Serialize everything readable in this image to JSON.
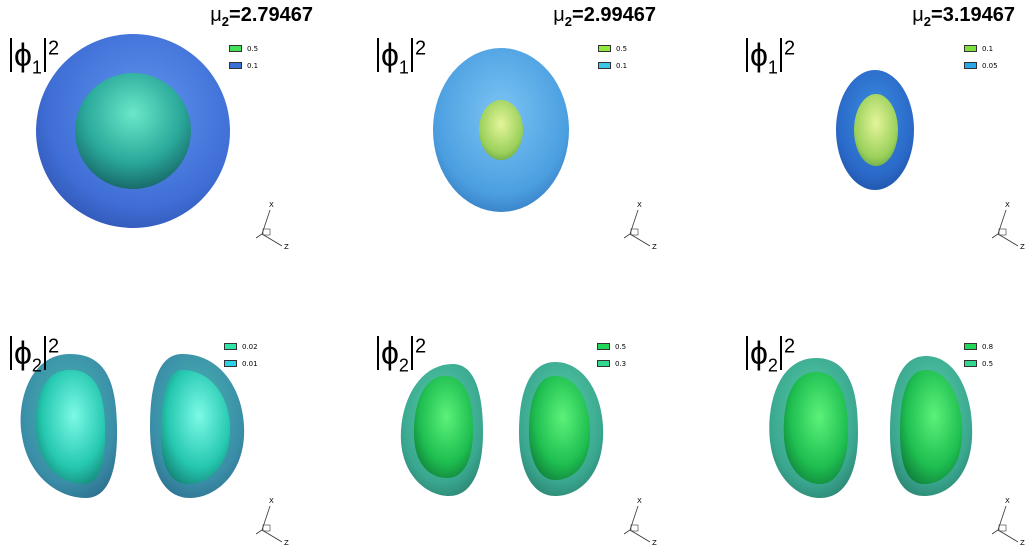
{
  "panels": [
    {
      "mu": "2.79467",
      "phi_sub": "1",
      "legend": [
        {
          "label": "0.5",
          "color": "#44e05a"
        },
        {
          "label": "0.1",
          "color": "#3a6fd8"
        }
      ]
    },
    {
      "mu": "2.99467",
      "phi_sub": "1",
      "legend": [
        {
          "label": "0.5",
          "color": "#8fe83a"
        },
        {
          "label": "0.1",
          "color": "#3ec8e8"
        }
      ]
    },
    {
      "mu": "3.19467",
      "phi_sub": "1",
      "legend": [
        {
          "label": "0.1",
          "color": "#7ee03a"
        },
        {
          "label": "0.05",
          "color": "#2aa8e8"
        }
      ]
    },
    {
      "mu": "",
      "phi_sub": "2",
      "legend": [
        {
          "label": "0.02",
          "color": "#2ee6a8"
        },
        {
          "label": "0.01",
          "color": "#2ed0e8"
        }
      ]
    },
    {
      "mu": "",
      "phi_sub": "2",
      "legend": [
        {
          "label": "0.5",
          "color": "#22d858"
        },
        {
          "label": "0.3",
          "color": "#33d890"
        }
      ]
    },
    {
      "mu": "",
      "phi_sub": "2",
      "legend": [
        {
          "label": "0.8",
          "color": "#22d858"
        },
        {
          "label": "0.5",
          "color": "#33d890"
        }
      ]
    }
  ],
  "axes": {
    "x": "X",
    "z": "Z"
  },
  "mu_symbol": "μ",
  "mu_sub": "2",
  "phi_symbol": "ϕ",
  "phi_sup": "2"
}
